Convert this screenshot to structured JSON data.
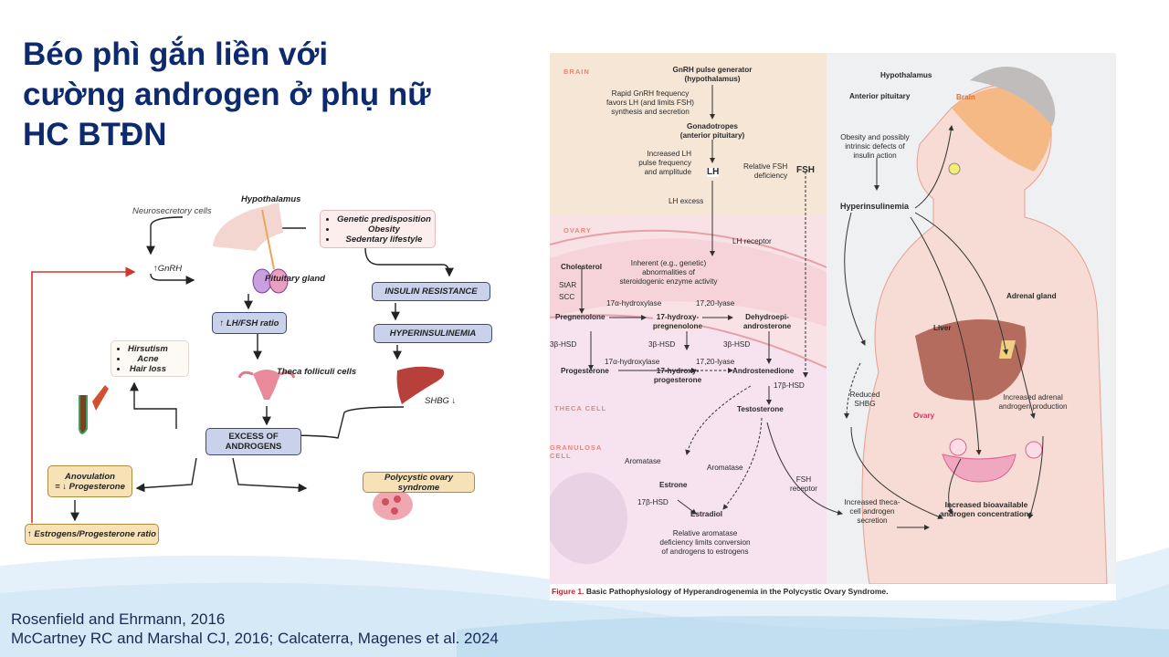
{
  "slide": {
    "title_lines": [
      "Béo phì gắn liền với",
      "cường androgen ở phụ nữ",
      "HC BTĐN"
    ],
    "citations": [
      "Rosenfield and Ehrmann, 2016",
      "McCartney RC and Marshal CJ, 2016; Calcaterra, Magenes et al. 2024"
    ]
  },
  "left_diagram": {
    "hypothalamus": "Hypothalamus",
    "neurosecretory": "Neurosecretory cells",
    "gnrh": "↑GnRH",
    "pituitary": "Pituitary gland",
    "risk_factors": [
      "Genetic predisposition",
      "Obesity",
      "Sedentary lifestyle"
    ],
    "insulin_resistance": "INSULIN RESISTANCE",
    "hyperinsulinemia": "HYPERINSULINEMIA",
    "lh_fsh": "↑ LH/FSH ratio",
    "symptoms": [
      "Hirsutism",
      "Acne",
      "Hair loss"
    ],
    "theca": "Theca folliculi cells",
    "shbg": "SHBG ↓",
    "excess": "EXCESS OF ANDROGENS",
    "anovulation_1": "Anovulation",
    "anovulation_2": "= ↓ Progesterone",
    "pcos": "Polycystic ovary syndrome",
    "ratio": "↑  Estrogens/Progesterone ratio",
    "colors": {
      "feedback_arrow": "#d0362a",
      "box_blue": "#c9d2ea",
      "box_tan": "#f7e2b8"
    }
  },
  "figure": {
    "brain_label": "BRAIN",
    "ovary_label": "OVARY",
    "theca_label": "THECA CELL",
    "granulosa_label": [
      "GRANULOSA",
      "CELL"
    ],
    "gnrh": [
      "GnRH pulse generator",
      "(hypothalamus)"
    ],
    "rapid": [
      "Rapid GnRH frequency",
      "favors LH (and limits FSH)",
      "synthesis and secretion"
    ],
    "gonadotropes": [
      "Gonadotropes",
      "(anterior pituitary)"
    ],
    "increased_lh": [
      "Increased LH",
      "pulse frequency",
      "and amplitude"
    ],
    "lh": "LH",
    "fsh_def": [
      "Relative FSH",
      "deficiency"
    ],
    "fsh": "FSH",
    "lh_excess": "LH excess",
    "lh_receptor": "LH receptor",
    "cholesterol": "Cholesterol",
    "inherent": [
      "Inherent (e.g., genetic)",
      "abnormalities of",
      "steroidogenic enzyme activity"
    ],
    "star": "StAR",
    "scc": "SCC",
    "hydroxylase": "17α-hydroxylase",
    "lyase": "17,20-lyase",
    "pregnenolone": "Pregnenolone",
    "hydroxy_preg": [
      "17-hydroxy-",
      "pregnenolone"
    ],
    "dhea": [
      "Dehydroepi-",
      "androsterone"
    ],
    "hsd3": "3β-HSD",
    "progesterone": "Progesterone",
    "hydroxy_prog": [
      "17-hydroxy-",
      "progesterone"
    ],
    "androstenedione": "Androstenedione",
    "hsd17": "17β-HSD",
    "testosterone": "Testosterone",
    "aromatase": "Aromatase",
    "fsh_receptor": [
      "FSH",
      "receptor"
    ],
    "estrone": "Estrone",
    "estradiol": "Estradiol",
    "aromatase_def": [
      "Relative aromatase",
      "deficiency limits conversion",
      "of androgens to estrogens"
    ],
    "caption_prefix": "Figure 1.",
    "caption": "Basic Pathophysiology of Hyperandrogenemia in the Polycystic Ovary Syndrome.",
    "hypothalamus": "Hypothalamus",
    "anterior_pituitary": "Anterior pituitary",
    "brain": "Brain",
    "obesity": [
      "Obesity and possibly",
      "intrinsic defects of",
      "insulin action"
    ],
    "hyperinsulinemia": "Hyperinsulinemia",
    "adrenal": "Adrenal gland",
    "liver": "Liver",
    "reduced_shbg": [
      "Reduced",
      "SHBG"
    ],
    "adrenal_prod": [
      "Increased adrenal",
      "androgen production"
    ],
    "ovary": "Ovary",
    "theca_secretion": [
      "Increased theca-",
      "cell androgen",
      "secretion"
    ],
    "bioavailable": [
      "Increased bioavailable",
      "androgen concentrations"
    ],
    "colors": {
      "brain_bg": "#f5e6d6",
      "ovary_bg": "#f8dde0",
      "body_bg": "#eef0f2",
      "caption_red": "#c8202e"
    }
  }
}
